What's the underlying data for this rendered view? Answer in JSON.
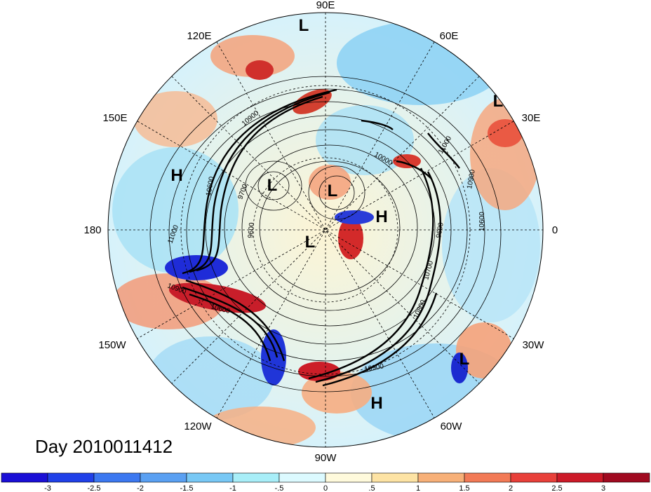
{
  "title": "Day 2010011412",
  "longitude_labels": {
    "lon_90E": "90E",
    "lon_120E": "120E",
    "lon_60E": "60E",
    "lon_150E": "150E",
    "lon_30E": "30E",
    "lon_180": "180",
    "lon_0": "0",
    "lon_150W": "150W",
    "lon_30W": "30W",
    "lon_120W": "120W",
    "lon_60W": "60W",
    "lon_90W": "90W"
  },
  "pressure_centers": [
    {
      "label": "L"
    },
    {
      "label": "L"
    },
    {
      "label": "H"
    },
    {
      "label": "L"
    },
    {
      "label": "L"
    },
    {
      "label": "H"
    },
    {
      "label": "L"
    },
    {
      "label": "L"
    },
    {
      "label": "H"
    }
  ],
  "contour_labels": [
    "10900",
    "9700",
    "10000",
    "11000",
    "10600",
    "10900",
    "9600",
    "10600",
    "10900",
    "11000",
    "10700",
    "10800",
    "10900",
    "10600",
    "9600"
  ],
  "colorbar": {
    "ticks": [
      "-3",
      "-2.5",
      "-2",
      "-1.5",
      "-1",
      "-.5",
      "0",
      ".5",
      "1",
      "1.5",
      "2",
      "2.5",
      "3"
    ],
    "colors": [
      "#1a0fd6",
      "#2040e8",
      "#3c78f0",
      "#5aa0f2",
      "#78c8f5",
      "#a8eef8",
      "#dcfaff",
      "#fffadc",
      "#fde3a4",
      "#f7b078",
      "#f27a56",
      "#e8403a",
      "#cc1a28",
      "#a00a20"
    ]
  }
}
